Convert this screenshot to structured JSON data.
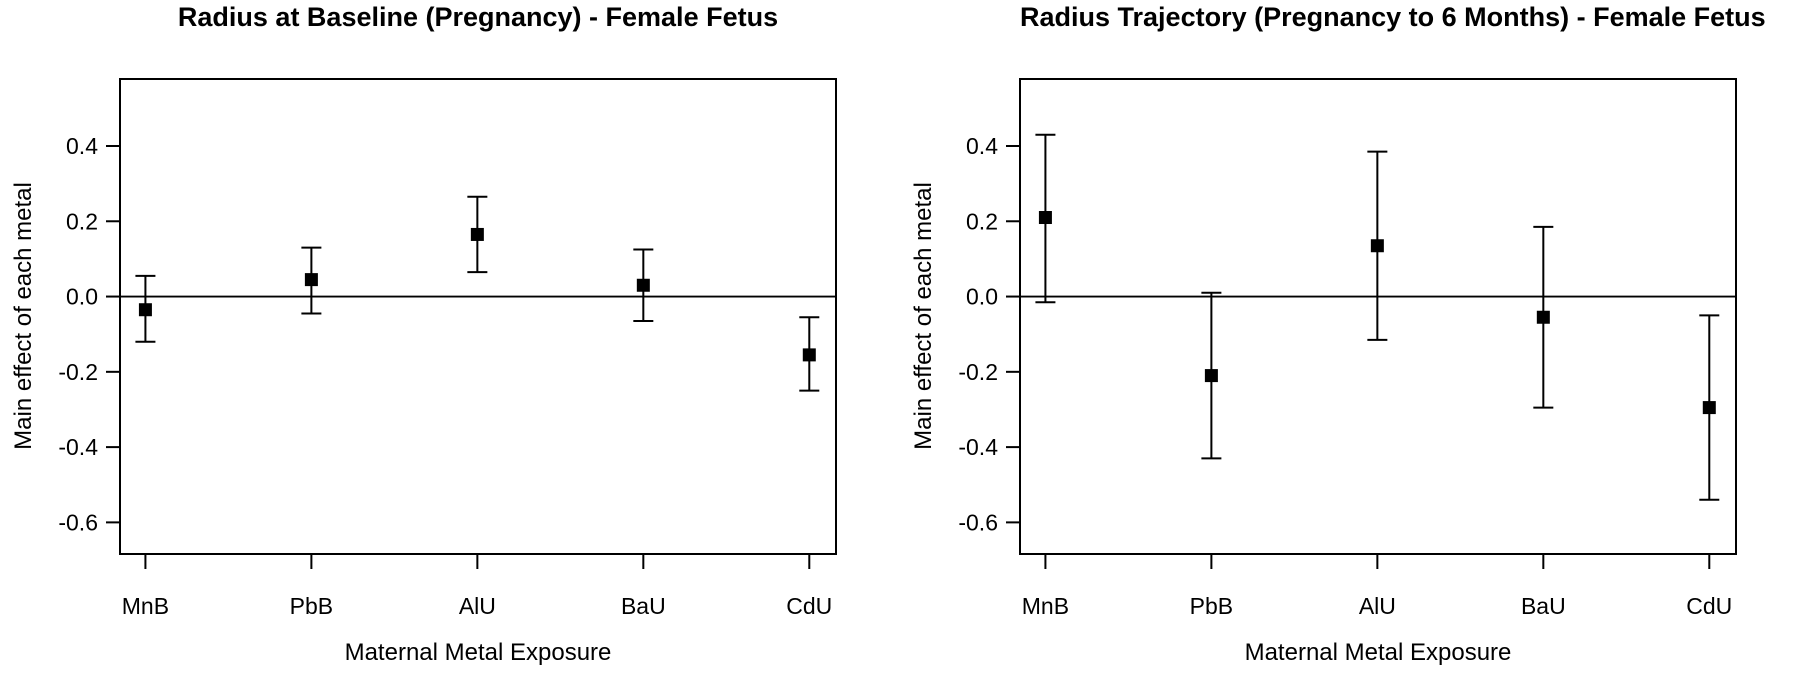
{
  "page": {
    "background_color": "#ffffff",
    "foreground_color": "#000000"
  },
  "chart_data": [
    {
      "type": "scatter",
      "subtype": "point-estimate-with-error-bars",
      "title": "Radius at Baseline (Pregnancy) - Female Fetus",
      "xlabel": "Maternal Metal Exposure",
      "ylabel": "Main effect of each metal",
      "categories": [
        "MnB",
        "PbB",
        "AlU",
        "BaU",
        "CdU"
      ],
      "estimates": [
        -0.035,
        0.045,
        0.165,
        0.03,
        -0.155
      ],
      "ci_lower": [
        -0.12,
        -0.045,
        0.065,
        -0.065,
        -0.25
      ],
      "ci_upper": [
        0.055,
        0.13,
        0.265,
        0.125,
        -0.055
      ],
      "yticks": [
        0.4,
        0.2,
        0.0,
        -0.2,
        -0.4,
        -0.6
      ],
      "ylim": [
        -0.684,
        0.578
      ],
      "reference_line_y": 0.0,
      "grid": false,
      "legend": "none",
      "marker": "filled-square",
      "color": "#000000"
    },
    {
      "type": "scatter",
      "subtype": "point-estimate-with-error-bars",
      "title": "Radius Trajectory (Pregnancy to 6 Months) - Female Fetus",
      "xlabel": "Maternal Metal Exposure",
      "ylabel": "Main effect of each metal",
      "categories": [
        "MnB",
        "PbB",
        "AlU",
        "BaU",
        "CdU"
      ],
      "estimates": [
        0.21,
        -0.21,
        0.135,
        -0.055,
        -0.295
      ],
      "ci_lower": [
        -0.015,
        -0.43,
        -0.115,
        -0.295,
        -0.54
      ],
      "ci_upper": [
        0.43,
        0.01,
        0.385,
        0.185,
        -0.05
      ],
      "yticks": [
        0.4,
        0.2,
        0.0,
        -0.2,
        -0.4,
        -0.6
      ],
      "ylim": [
        -0.684,
        0.578
      ],
      "reference_line_y": 0.0,
      "grid": false,
      "legend": "none",
      "marker": "filled-square",
      "color": "#000000"
    }
  ]
}
